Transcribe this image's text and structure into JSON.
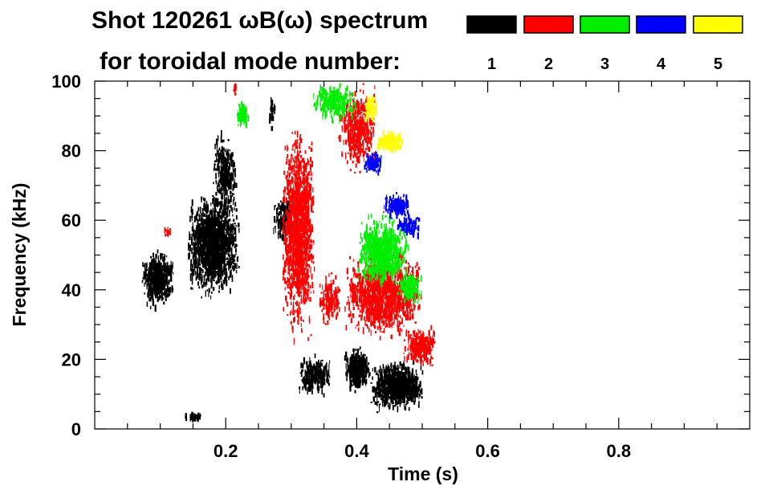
{
  "title": {
    "line1": "Shot 120261 ωB(ω) spectrum",
    "line2": "for toroidal mode number:"
  },
  "colors": {
    "background": "#ffffff",
    "axis": "#000000",
    "mode_1": "#000000",
    "mode_2": "#ff0000",
    "mode_3": "#00ee00",
    "mode_4": "#0000ff",
    "mode_5": "#ffff00"
  },
  "chart_data": {
    "type": "heatmap",
    "title": "Shot 120261 ωB(ω) spectrum",
    "subtitle": "for toroidal mode number:",
    "xlabel": "Time (s)",
    "ylabel": "Frequency (kHz)",
    "xlim": [
      0.0,
      1.0
    ],
    "ylim": [
      0,
      100
    ],
    "x_ticks": [
      0.2,
      0.4,
      0.6,
      0.8
    ],
    "x_tick_labels": [
      "0.2",
      "0.4",
      "0.6",
      "0.8"
    ],
    "y_ticks": [
      0,
      20,
      40,
      60,
      80,
      100
    ],
    "y_tick_labels": [
      "0",
      "20",
      "40",
      "60",
      "80",
      "100"
    ],
    "grid": false,
    "legend": {
      "placement": "top-right",
      "entries": [
        {
          "mode": "1",
          "label": "1",
          "color": "#000000"
        },
        {
          "mode": "2",
          "label": "2",
          "color": "#ff0000"
        },
        {
          "mode": "3",
          "label": "3",
          "color": "#00ee00"
        },
        {
          "mode": "4",
          "label": "4",
          "color": "#0000ff"
        },
        {
          "mode": "5",
          "label": "5",
          "color": "#ffff00"
        }
      ]
    },
    "series": [
      {
        "name": "n=1",
        "mode": 1,
        "color": "#000000",
        "regions": [
          {
            "t0": 0.07,
            "t1": 0.12,
            "f0": 34,
            "f1": 52,
            "density": 0.75
          },
          {
            "t0": 0.14,
            "t1": 0.22,
            "f0": 36,
            "f1": 70,
            "density": 0.65
          },
          {
            "t0": 0.18,
            "t1": 0.215,
            "f0": 60,
            "f1": 86,
            "density": 0.4
          },
          {
            "t0": 0.135,
            "t1": 0.165,
            "f0": 2,
            "f1": 5,
            "density": 0.5
          },
          {
            "t0": 0.265,
            "t1": 0.275,
            "f0": 85,
            "f1": 97,
            "density": 0.3
          },
          {
            "t0": 0.27,
            "t1": 0.31,
            "f0": 52,
            "f1": 68,
            "density": 0.35
          },
          {
            "t0": 0.31,
            "t1": 0.36,
            "f0": 8,
            "f1": 22,
            "density": 0.5
          },
          {
            "t0": 0.38,
            "t1": 0.42,
            "f0": 10,
            "f1": 24,
            "density": 0.7
          },
          {
            "t0": 0.42,
            "t1": 0.5,
            "f0": 4,
            "f1": 20,
            "density": 0.85
          }
        ]
      },
      {
        "name": "n=2",
        "mode": 2,
        "color": "#ff0000",
        "regions": [
          {
            "t0": 0.105,
            "t1": 0.115,
            "f0": 55,
            "f1": 58,
            "density": 0.6
          },
          {
            "t0": 0.21,
            "t1": 0.215,
            "f0": 95,
            "f1": 100,
            "density": 0.6
          },
          {
            "t0": 0.285,
            "t1": 0.335,
            "f0": 24,
            "f1": 90,
            "density": 0.55
          },
          {
            "t0": 0.34,
            "t1": 0.375,
            "f0": 28,
            "f1": 46,
            "density": 0.3
          },
          {
            "t0": 0.37,
            "t1": 0.43,
            "f0": 72,
            "f1": 100,
            "density": 0.35
          },
          {
            "t0": 0.38,
            "t1": 0.5,
            "f0": 25,
            "f1": 52,
            "density": 0.5
          },
          {
            "t0": 0.47,
            "t1": 0.52,
            "f0": 17,
            "f1": 30,
            "density": 0.5
          }
        ]
      },
      {
        "name": "n=3",
        "mode": 3,
        "color": "#00ee00",
        "regions": [
          {
            "t0": 0.215,
            "t1": 0.235,
            "f0": 86,
            "f1": 95,
            "density": 0.6
          },
          {
            "t0": 0.33,
            "t1": 0.4,
            "f0": 88,
            "f1": 100,
            "density": 0.4
          },
          {
            "t0": 0.4,
            "t1": 0.48,
            "f0": 40,
            "f1": 62,
            "density": 0.55
          },
          {
            "t0": 0.46,
            "t1": 0.5,
            "f0": 35,
            "f1": 46,
            "density": 0.4
          }
        ]
      },
      {
        "name": "n=4",
        "mode": 4,
        "color": "#0000ff",
        "regions": [
          {
            "t0": 0.41,
            "t1": 0.44,
            "f0": 73,
            "f1": 80,
            "density": 0.6
          },
          {
            "t0": 0.44,
            "t1": 0.48,
            "f0": 60,
            "f1": 68,
            "density": 0.6
          },
          {
            "t0": 0.46,
            "t1": 0.5,
            "f0": 55,
            "f1": 62,
            "density": 0.4
          }
        ]
      },
      {
        "name": "n=5",
        "mode": 5,
        "color": "#ffff00",
        "regions": [
          {
            "t0": 0.41,
            "t1": 0.43,
            "f0": 88,
            "f1": 97,
            "density": 0.5
          },
          {
            "t0": 0.43,
            "t1": 0.47,
            "f0": 79,
            "f1": 86,
            "density": 0.75
          }
        ]
      }
    ]
  }
}
